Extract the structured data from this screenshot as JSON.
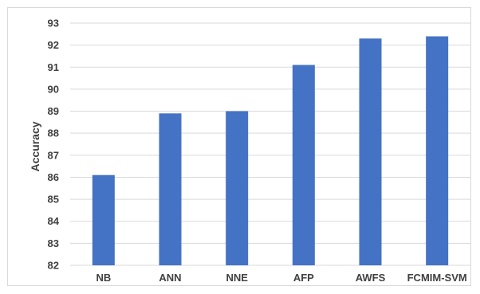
{
  "colors": {
    "bar": "#4472c4",
    "grid": "#d9d9d9",
    "text": "#404040",
    "border": "#d9d9d9"
  },
  "chart_data": {
    "type": "bar",
    "title": "",
    "xlabel": "",
    "ylabel": "Accuracy",
    "categories": [
      "NB",
      "ANN",
      "NNE",
      "AFP",
      "AWFS",
      "FCMIM-SVM"
    ],
    "values": [
      86.1,
      88.9,
      89.0,
      91.1,
      92.3,
      92.4
    ],
    "ylim": [
      82,
      93
    ],
    "yticks": [
      82,
      83,
      84,
      85,
      86,
      87,
      88,
      89,
      90,
      91,
      92,
      93
    ],
    "grid": true,
    "legend": "none"
  }
}
